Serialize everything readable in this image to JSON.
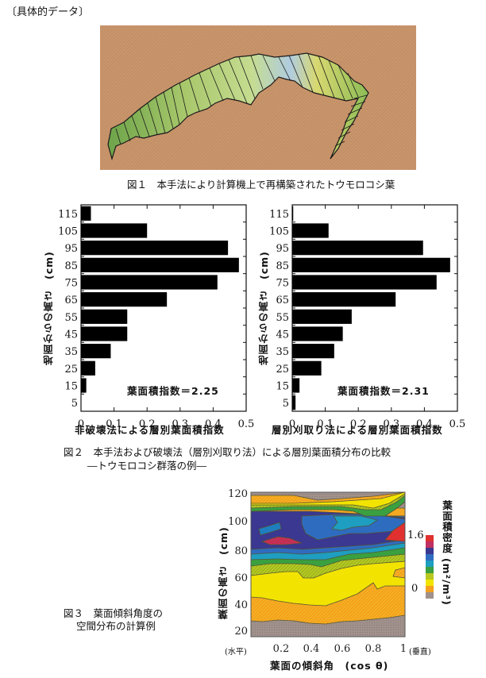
{
  "section_label": "〔具体的データ〕",
  "figure1": {
    "caption": "図１　本手法により計算機上で再構築されたトウモロコシ葉",
    "background_color": "#c9956b",
    "leaf_colors": [
      "#7fae4e",
      "#a8c870",
      "#c9dc8c",
      "#9cc0d8",
      "#e8d850"
    ]
  },
  "figure2": {
    "caption_line1": "図２　本手法および破壊法（層別刈取り法）による層別葉面積分布の比較",
    "caption_line2": "―トウモロコシ群落の例―",
    "left": {
      "ylabel": "地面からの高さ　(cm)",
      "xlabel": "非破壊法による層別葉面積指数",
      "annotation": "葉面積指数＝2.25"
    },
    "right": {
      "ylabel": "地面からの高さ　(cm)",
      "xlabel": "層別刈取り法による層別葉面積指数",
      "annotation": "葉面積指数＝2.31"
    }
  },
  "figure3": {
    "caption_line1": "図３　葉面傾斜角度の",
    "caption_line2": "空間分布の計算例",
    "ylabel": "葉面の高さ　(cm)",
    "xlabel": "葉面の傾斜角　(cos θ)",
    "x_left_note": "(水平)",
    "x_right_note": "(垂直)",
    "colorbar_label": "葉面積密度 (m²/m³)",
    "colorbar_max": "1.6",
    "colorbar_min": "0"
  },
  "chart_data": [
    {
      "type": "bar",
      "orientation": "horizontal",
      "title": "",
      "categories": [
        "115",
        "105",
        "95",
        "85",
        "75",
        "65",
        "55",
        "45",
        "35",
        "25",
        "15",
        "5"
      ],
      "values": [
        0.03,
        0.2,
        0.445,
        0.478,
        0.413,
        0.26,
        0.14,
        0.14,
        0.09,
        0.043,
        0.016,
        0.0
      ],
      "xlabel": "非破壊法による層別葉面積指数",
      "ylabel": "地面からの高さ　(cm)",
      "xlim": [
        0,
        0.5
      ],
      "xticks": [
        "0",
        "0.1",
        "0.2",
        "0.3",
        "0.4",
        "0.5"
      ],
      "annotation": "葉面積指数＝2.25",
      "grid": false,
      "bar_color": "#000000"
    },
    {
      "type": "bar",
      "orientation": "horizontal",
      "title": "",
      "categories": [
        "115",
        "105",
        "95",
        "85",
        "75",
        "65",
        "55",
        "45",
        "35",
        "25",
        "15",
        "5"
      ],
      "values": [
        0.003,
        0.11,
        0.396,
        0.478,
        0.437,
        0.313,
        0.18,
        0.153,
        0.127,
        0.088,
        0.022,
        0.01
      ],
      "xlabel": "層別刈取り法による層別葉面積指数",
      "ylabel": "地面からの高さ　(cm)",
      "xlim": [
        0,
        0.5
      ],
      "xticks": [
        "0",
        "0.1",
        "0.2",
        "0.3",
        "0.4",
        "0.5"
      ],
      "annotation": "葉面積指数＝2.31",
      "grid": false,
      "bar_color": "#000000"
    },
    {
      "type": "heatmap",
      "title": "",
      "xlabel": "葉面の傾斜角　(cos θ)",
      "ylabel": "葉面の高さ　(cm)",
      "xticks": [
        "0.2",
        "0.4",
        "0.6",
        "0.8",
        "1"
      ],
      "yticks": [
        "20",
        "40",
        "60",
        "80",
        "100",
        "120"
      ],
      "xlim": [
        0.1,
        1.0
      ],
      "ylim": [
        12,
        122
      ],
      "colorbar": {
        "label": "葉面積密度 (m²/m³)",
        "min": 0,
        "max": 1.6,
        "colors": [
          "#9a8a86",
          "#f5a020",
          "#f0e000",
          "#c8d820",
          "#58b030",
          "#1890c0",
          "#3070c0",
          "#3a3a90",
          "#a03070",
          "#e03030"
        ]
      },
      "bands_description": [
        {
          "height_range": "12-28",
          "level": "0 (gray)"
        },
        {
          "height_range": "28-45",
          "level": "low (orange)"
        },
        {
          "height_range": "45-60",
          "level": "yellow"
        },
        {
          "height_range": "60-72",
          "level": "yellow-green/green"
        },
        {
          "height_range": "72-80",
          "level": "cyan/blue"
        },
        {
          "height_range": "80-100",
          "level": "dark blue / purple, red patches near 80 at cos 0.2-0.35 and 0.9-1.0"
        },
        {
          "height_range": "100-108",
          "level": "green/yellow"
        },
        {
          "height_range": "108-116",
          "level": "orange"
        },
        {
          "height_range": "116-122",
          "level": "0 (gray)"
        }
      ]
    }
  ]
}
